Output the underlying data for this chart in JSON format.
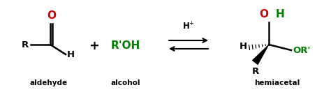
{
  "bg_color": "#ffffff",
  "black": "#000000",
  "red": "#cc0000",
  "green": "#008000",
  "aldehyde_label": "aldehyde",
  "alcohol_label": "alcohol",
  "hemiacetal_label": "hemiacetal",
  "figsize": [
    4.74,
    1.32
  ],
  "dpi": 100,
  "lw": 1.8,
  "fs_label": 7.5,
  "fs_chem": 9.5,
  "fs_symbol": 11,
  "fs_catalyst": 8.5
}
